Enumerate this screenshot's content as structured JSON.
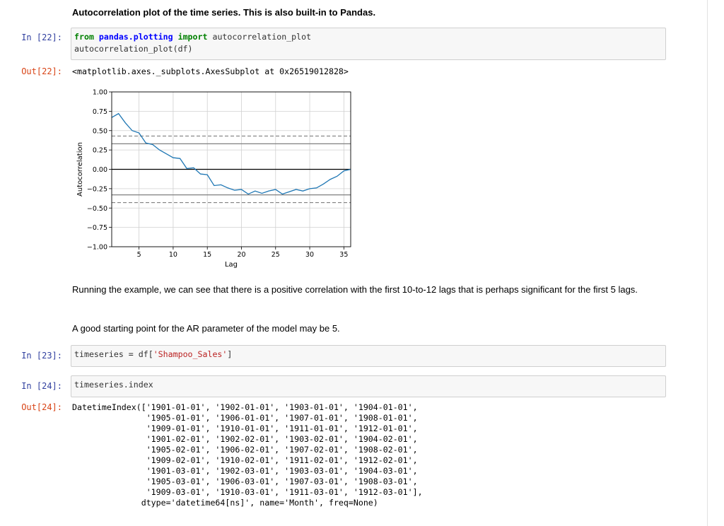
{
  "markdown_heading": "Autocorrelation plot of the time series. This is also built-in to Pandas.",
  "cells": {
    "c22": {
      "in_prompt": "In [22]:",
      "line1_kw1": "from",
      "line1_mod": "pandas.plotting",
      "line1_kw2": "import",
      "line1_rest": "autocorrelation_plot",
      "line2": "autocorrelation_plot(df)",
      "out_prompt": "Out[22]:",
      "output": "<matplotlib.axes._subplots.AxesSubplot at 0x26519012828>"
    },
    "c23": {
      "in_prompt": "In [23]:",
      "code_a": "timeseries = df[",
      "code_str": "'Shampoo_Sales'",
      "code_b": "]"
    },
    "c24": {
      "in_prompt": "In [24]:",
      "code": "timeseries.index",
      "out_prompt": "Out[24]:",
      "output_lines": [
        "DatetimeIndex(['1901-01-01', '1902-01-01', '1903-01-01', '1904-01-01',",
        "               '1905-01-01', '1906-01-01', '1907-01-01', '1908-01-01',",
        "               '1909-01-01', '1910-01-01', '1911-01-01', '1912-01-01',",
        "               '1901-02-01', '1902-02-01', '1903-02-01', '1904-02-01',",
        "               '1905-02-01', '1906-02-01', '1907-02-01', '1908-02-01',",
        "               '1909-02-01', '1910-02-01', '1911-02-01', '1912-02-01',",
        "               '1901-03-01', '1902-03-01', '1903-03-01', '1904-03-01',",
        "               '1905-03-01', '1906-03-01', '1907-03-01', '1908-03-01',",
        "               '1909-03-01', '1910-03-01', '1911-03-01', '1912-03-01'],",
        "              dtype='datetime64[ns]', name='Month', freq=None)"
      ]
    }
  },
  "paragraphs": [
    "Running the example, we can see that there is a positive correlation with the first 10-to-12 lags that is perhaps significant for the first 5 lags.",
    "A good starting point for the AR parameter of the model may be 5."
  ],
  "chart_data": {
    "type": "line",
    "xlabel": "Lag",
    "ylabel": "Autocorrelation",
    "xlim": [
      1,
      36
    ],
    "ylim": [
      -1.0,
      1.0
    ],
    "xticks": [
      5,
      10,
      15,
      20,
      25,
      30,
      35
    ],
    "yticks": [
      1.0,
      0.75,
      0.5,
      0.25,
      0.0,
      -0.25,
      -0.5,
      -0.75,
      -1.0
    ],
    "ytick_labels": [
      "1.00",
      "0.75",
      "0.50",
      "0.25",
      "0.00",
      "−0.25",
      "−0.50",
      "−0.75",
      "−1.00"
    ],
    "x": [
      1,
      2,
      3,
      4,
      5,
      6,
      7,
      8,
      9,
      10,
      11,
      12,
      13,
      14,
      15,
      16,
      17,
      18,
      19,
      20,
      21,
      22,
      23,
      24,
      25,
      26,
      27,
      28,
      29,
      30,
      31,
      32,
      33,
      34,
      35,
      36
    ],
    "y": [
      0.67,
      0.72,
      0.6,
      0.5,
      0.47,
      0.34,
      0.32,
      0.25,
      0.2,
      0.15,
      0.14,
      0.01,
      0.02,
      -0.06,
      -0.07,
      -0.21,
      -0.2,
      -0.24,
      -0.27,
      -0.26,
      -0.32,
      -0.28,
      -0.31,
      -0.28,
      -0.26,
      -0.32,
      -0.29,
      -0.26,
      -0.28,
      -0.25,
      -0.24,
      -0.19,
      -0.13,
      -0.09,
      -0.02,
      0.0
    ],
    "confidence_lines": [
      0.43,
      0.33,
      -0.33,
      -0.43
    ],
    "line_color": "#1f77b4"
  }
}
